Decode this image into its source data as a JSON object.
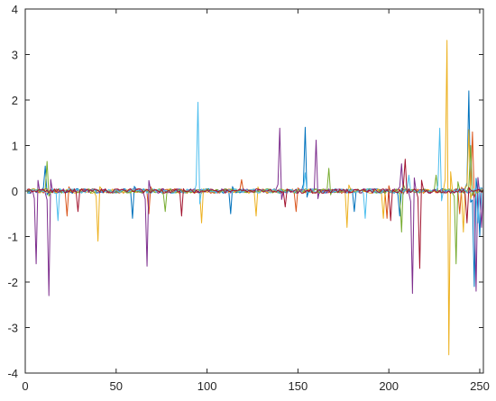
{
  "chart_data": {
    "type": "line",
    "title": "",
    "xlabel": "",
    "ylabel": "",
    "xlim": [
      0,
      252
    ],
    "ylim": [
      -4,
      4
    ],
    "grid": false,
    "legend": "none",
    "x_ticks": [
      0,
      50,
      100,
      150,
      200,
      250
    ],
    "x_tick_labels": [
      "0",
      "50",
      "100",
      "150",
      "200",
      "250"
    ],
    "y_ticks": [
      -4,
      -3,
      -2,
      -1,
      0,
      1,
      2,
      3,
      4
    ],
    "y_tick_labels": [
      "-4",
      "-3",
      "-2",
      "-1",
      "0",
      "1",
      "2",
      "3",
      "4"
    ],
    "n_points": 252,
    "series": [
      {
        "color": "#0072BD",
        "noise": 0.05,
        "events": [
          [
            10,
            0.55
          ],
          [
            58,
            -0.6
          ],
          [
            112,
            -0.5
          ],
          [
            153,
            1.4
          ],
          [
            180,
            -0.45
          ],
          [
            205,
            -0.55
          ],
          [
            243,
            2.2
          ],
          [
            246,
            -2.1
          ],
          [
            249,
            -1.0
          ]
        ]
      },
      {
        "color": "#D95319",
        "noise": 0.05,
        "events": [
          [
            22,
            -0.55
          ],
          [
            67,
            -0.5
          ],
          [
            118,
            0.25
          ],
          [
            148,
            -0.45
          ],
          [
            198,
            -0.6
          ],
          [
            238,
            -0.5
          ],
          [
            245,
            1.3
          ]
        ]
      },
      {
        "color": "#EDB120",
        "noise": 0.05,
        "events": [
          [
            39,
            -1.1
          ],
          [
            96,
            -0.7
          ],
          [
            126,
            -0.55
          ],
          [
            176,
            -0.8
          ],
          [
            196,
            -0.6
          ],
          [
            231,
            3.6
          ],
          [
            232,
            -3.6
          ],
          [
            240,
            -0.9
          ],
          [
            243,
            1.35
          ]
        ]
      },
      {
        "color": "#7E2F8E",
        "noise": 0.05,
        "events": [
          [
            5,
            -1.6
          ],
          [
            12,
            -2.3
          ],
          [
            66,
            -1.65
          ],
          [
            139,
            1.38
          ],
          [
            159,
            1.12
          ],
          [
            206,
            0.6
          ],
          [
            212,
            -2.25
          ],
          [
            247,
            -2.2
          ],
          [
            250,
            -0.8
          ]
        ]
      },
      {
        "color": "#77AC30",
        "noise": 0.05,
        "events": [
          [
            11,
            0.65
          ],
          [
            76,
            -0.45
          ],
          [
            166,
            0.5
          ],
          [
            206,
            -0.9
          ],
          [
            225,
            0.35
          ],
          [
            236,
            -1.6
          ],
          [
            244,
            1.0
          ]
        ]
      },
      {
        "color": "#4DBEEE",
        "noise": 0.05,
        "events": [
          [
            17,
            -0.65
          ],
          [
            94,
            1.95
          ],
          [
            153,
            0.4
          ],
          [
            186,
            -0.6
          ],
          [
            210,
            0.35
          ],
          [
            227,
            1.38
          ],
          [
            248,
            -0.7
          ]
        ]
      },
      {
        "color": "#A2142F",
        "noise": 0.05,
        "events": [
          [
            28,
            -0.45
          ],
          [
            85,
            -0.55
          ],
          [
            142,
            -0.35
          ],
          [
            200,
            -0.65
          ],
          [
            208,
            0.7
          ],
          [
            216,
            -1.7
          ],
          [
            242,
            -0.7
          ]
        ]
      }
    ]
  }
}
